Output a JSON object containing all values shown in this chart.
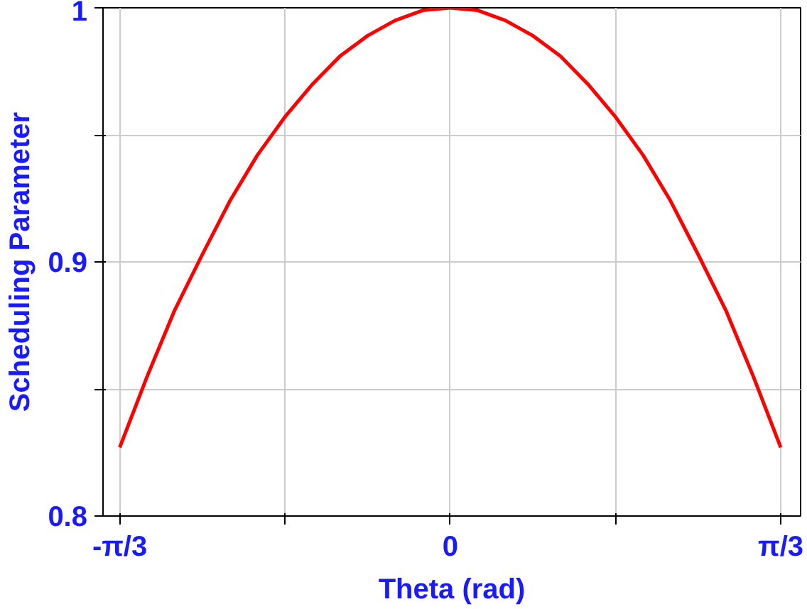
{
  "chart_data": {
    "type": "line",
    "xlabel": "Theta (rad)",
    "ylabel": "Scheduling Parameter",
    "x": [
      -1.047,
      -0.96,
      -0.873,
      -0.785,
      -0.698,
      -0.611,
      -0.524,
      -0.436,
      -0.349,
      -0.262,
      -0.175,
      -0.087,
      0,
      0.087,
      0.175,
      0.262,
      0.349,
      0.436,
      0.524,
      0.611,
      0.698,
      0.785,
      0.873,
      0.96,
      1.047
    ],
    "series": [
      {
        "color": "#ff0000",
        "values": [
          0.827,
          0.855,
          0.881,
          0.903,
          0.924,
          0.942,
          0.957,
          0.97,
          0.981,
          0.989,
          0.995,
          0.999,
          1.0,
          0.999,
          0.995,
          0.989,
          0.981,
          0.97,
          0.957,
          0.942,
          0.924,
          0.903,
          0.881,
          0.855,
          0.827
        ]
      }
    ],
    "xlim": [
      -1.1,
      1.11
    ],
    "ylim": [
      0.8,
      1.0
    ],
    "xticks": [
      {
        "value": -1.047,
        "label": "-π/3"
      },
      {
        "value": -0.524,
        "label": null
      },
      0,
      {
        "value": 0.524,
        "label": null
      },
      {
        "value": 1.047,
        "label": "π/3"
      }
    ],
    "yticks": [
      0.8,
      {
        "value": 0.85,
        "label": null
      },
      0.9,
      {
        "value": 0.95,
        "label": null
      },
      1
    ],
    "grid": true,
    "marker": "none",
    "line_style": "solid"
  }
}
